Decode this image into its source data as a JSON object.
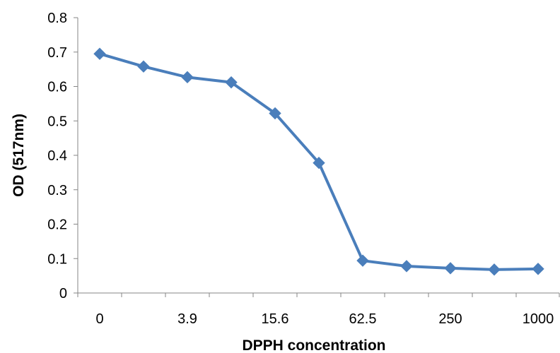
{
  "chart_data": {
    "type": "line",
    "title": "",
    "xlabel": "DPPH concentration",
    "ylabel": "OD (517nm)",
    "categories": [
      "0",
      "",
      "3.9",
      "",
      "15.6",
      "",
      "62.5",
      "",
      "250",
      "",
      "1000"
    ],
    "series": [
      {
        "values": [
          0.695,
          0.658,
          0.627,
          0.612,
          0.522,
          0.378,
          0.094,
          0.078,
          0.072,
          0.068,
          0.07
        ],
        "color": "#4a7ebb",
        "marker": "diamond"
      }
    ],
    "ylim": [
      0,
      0.8
    ],
    "yticks": [
      0,
      0.1,
      0.2,
      0.3,
      0.4,
      0.5,
      0.6,
      0.7,
      0.8
    ],
    "ytick_labels": [
      "0",
      "0.1",
      "0.2",
      "0.3",
      "0.4",
      "0.5",
      "0.6",
      "0.7",
      "0.8"
    ],
    "grid": false,
    "legend": "none",
    "axis_color": "#868686"
  }
}
